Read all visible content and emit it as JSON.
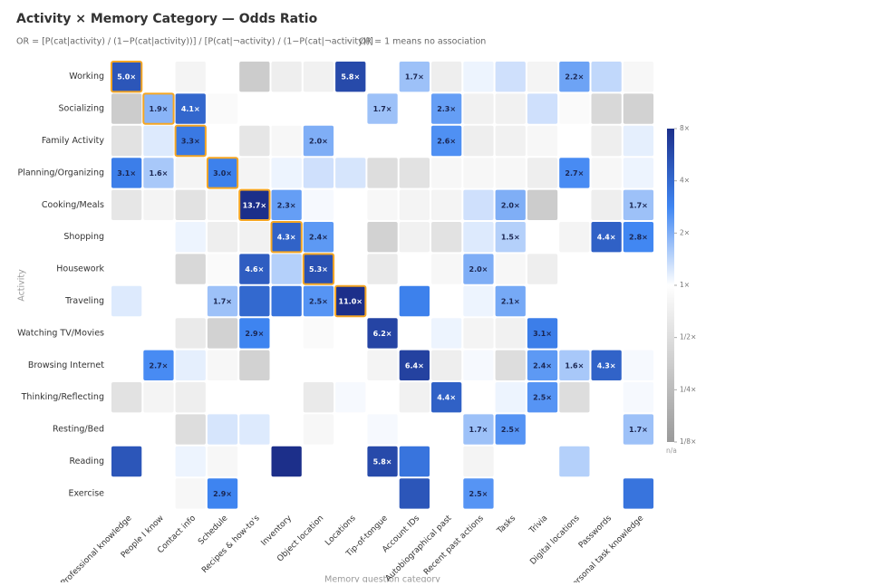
{
  "chart_data": {
    "type": "heatmap",
    "title": "Activity × Memory Category — Odds Ratio",
    "subtitle": "OR = [P(cat|activity) / (1−P(cat|activity))] / [P(cat|¬activity) / (1−P(cat|¬activity))]",
    "note": "OR = 1 means no association",
    "x_label": "Memory question category",
    "y_label": "Activity",
    "rows": [
      "Working",
      "Socializing",
      "Family Activity",
      "Planning/Organizing",
      "Cooking/Meals",
      "Shopping",
      "Housework",
      "Traveling",
      "Watching TV/Movies",
      "Browsing Internet",
      "Thinking/Reflecting",
      "Resting/Bed",
      "Reading",
      "Exercise"
    ],
    "columns": [
      "Professional knowledge",
      "People I know",
      "Contact info",
      "Schedule",
      "Recipes & how-to's",
      "Inventory",
      "Object location",
      "Locations",
      "Tip-of-tongue",
      "Account IDs",
      "Autobiographical past",
      "Recent past actions",
      "Tasks",
      "Trivia",
      "Digital locations",
      "Passwords",
      "Personal task knowledge"
    ],
    "values": [
      [
        5.0,
        1,
        0.8,
        1,
        0.35,
        0.7,
        0.75,
        5.8,
        1,
        1.7,
        0.7,
        1.1,
        1.3,
        0.8,
        2.2,
        1.4,
        0.85
      ],
      [
        0.35,
        1.9,
        4.1,
        0.9,
        1,
        1,
        1,
        1,
        1.7,
        1,
        2.3,
        0.75,
        0.75,
        1.3,
        0.9,
        0.45,
        0.4
      ],
      [
        0.55,
        1.2,
        3.3,
        1,
        0.6,
        0.85,
        2.0,
        1,
        1,
        1,
        2.6,
        0.7,
        0.75,
        0.85,
        1,
        0.7,
        1.15
      ],
      [
        3.1,
        1.6,
        0.8,
        3.0,
        0.8,
        1.1,
        1.3,
        1.25,
        0.5,
        0.55,
        0.85,
        0.85,
        0.85,
        0.7,
        2.7,
        0.85,
        1.1
      ],
      [
        0.6,
        0.8,
        0.55,
        0.8,
        13.7,
        2.3,
        1.05,
        1,
        0.85,
        0.8,
        0.8,
        1.3,
        2.0,
        0.35,
        1,
        0.7,
        1.7
      ],
      [
        1,
        1,
        1.1,
        0.7,
        0.75,
        4.3,
        2.4,
        1,
        0.4,
        0.75,
        0.55,
        1.2,
        1.5,
        1,
        0.8,
        4.4,
        2.8
      ],
      [
        1,
        1,
        0.45,
        0.9,
        4.6,
        1.5,
        5.3,
        1,
        0.65,
        1,
        0.85,
        2.0,
        0.85,
        0.7,
        1,
        1,
        1
      ],
      [
        1.2,
        1,
        1,
        1.7,
        4.0,
        3.5,
        2.5,
        11.0,
        1,
        3.0,
        1,
        1.1,
        2.1,
        1,
        1,
        1,
        1
      ],
      [
        1,
        1,
        0.65,
        0.4,
        2.9,
        1,
        0.9,
        1,
        6.2,
        1,
        1.1,
        0.8,
        0.75,
        3.1,
        1,
        1,
        1
      ],
      [
        1,
        2.7,
        1.15,
        0.85,
        0.4,
        1,
        1,
        1,
        0.8,
        6.4,
        0.7,
        1.05,
        0.5,
        2.4,
        1.6,
        4.3,
        1.05
      ],
      [
        0.55,
        0.8,
        0.7,
        1,
        1,
        1,
        0.65,
        1.05,
        1,
        0.75,
        4.4,
        1,
        1.1,
        2.5,
        0.5,
        1,
        1.05
      ],
      [
        1,
        1,
        0.5,
        1.25,
        1.2,
        1,
        0.85,
        1,
        1.05,
        1,
        1,
        1.7,
        2.5,
        1,
        1,
        1,
        1.7
      ],
      [
        5.0,
        1,
        1.1,
        0.85,
        1,
        8.0,
        1,
        1,
        5.8,
        3.5,
        1,
        0.8,
        1,
        1,
        1.5,
        1,
        1
      ],
      [
        1,
        1,
        0.85,
        2.9,
        1,
        1,
        1,
        1,
        1,
        5.0,
        1,
        2.5,
        1,
        1,
        1,
        1,
        3.5
      ]
    ],
    "value_labels": [
      [
        "5.0×",
        null,
        null,
        null,
        null,
        null,
        null,
        "5.8×",
        null,
        "1.7×",
        null,
        null,
        null,
        null,
        "2.2×",
        null,
        null
      ],
      [
        null,
        "1.9×",
        "4.1×",
        null,
        null,
        null,
        null,
        null,
        "1.7×",
        null,
        "2.3×",
        null,
        null,
        null,
        null,
        null,
        null
      ],
      [
        null,
        null,
        "3.3×",
        null,
        null,
        null,
        "2.0×",
        null,
        null,
        null,
        "2.6×",
        null,
        null,
        null,
        null,
        null,
        null
      ],
      [
        "3.1×",
        "1.6×",
        null,
        "3.0×",
        null,
        null,
        null,
        null,
        null,
        null,
        null,
        null,
        null,
        null,
        "2.7×",
        null,
        null
      ],
      [
        null,
        null,
        null,
        null,
        "13.7×",
        "2.3×",
        null,
        null,
        null,
        null,
        null,
        null,
        "2.0×",
        null,
        null,
        null,
        "1.7×"
      ],
      [
        null,
        null,
        null,
        null,
        null,
        "4.3×",
        "2.4×",
        null,
        null,
        null,
        null,
        null,
        "1.5×",
        null,
        null,
        "4.4×",
        "2.8×"
      ],
      [
        null,
        null,
        null,
        null,
        "4.6×",
        null,
        "5.3×",
        null,
        null,
        null,
        null,
        "2.0×",
        null,
        null,
        null,
        null,
        null
      ],
      [
        null,
        null,
        null,
        "1.7×",
        null,
        null,
        "2.5×",
        "11.0×",
        null,
        null,
        null,
        null,
        "2.1×",
        null,
        null,
        null,
        null
      ],
      [
        null,
        null,
        null,
        null,
        "2.9×",
        null,
        null,
        null,
        "6.2×",
        null,
        null,
        null,
        null,
        "3.1×",
        null,
        null,
        null
      ],
      [
        null,
        "2.7×",
        null,
        null,
        null,
        null,
        null,
        null,
        null,
        "6.4×",
        null,
        null,
        null,
        "2.4×",
        "1.6×",
        "4.3×",
        null
      ],
      [
        null,
        null,
        null,
        null,
        null,
        null,
        null,
        null,
        null,
        null,
        "4.4×",
        null,
        null,
        "2.5×",
        null,
        null,
        null
      ],
      [
        null,
        null,
        null,
        null,
        null,
        null,
        null,
        null,
        null,
        null,
        null,
        "1.7×",
        "2.5×",
        null,
        null,
        null,
        "1.7×"
      ],
      [
        null,
        null,
        null,
        null,
        null,
        null,
        null,
        null,
        "5.8×",
        null,
        null,
        null,
        null,
        null,
        null,
        null,
        null
      ],
      [
        null,
        null,
        null,
        "2.9×",
        null,
        null,
        null,
        null,
        null,
        null,
        null,
        "2.5×",
        null,
        null,
        null,
        null,
        null
      ]
    ],
    "highlighted": [
      [
        0,
        0
      ],
      [
        1,
        1
      ],
      [
        2,
        2
      ],
      [
        3,
        3
      ],
      [
        4,
        4
      ],
      [
        5,
        5
      ],
      [
        6,
        6
      ],
      [
        7,
        7
      ]
    ],
    "highlight_color": "#f5a623",
    "log_scale": true,
    "colorscale": [
      {
        "value": 0.125,
        "color": "#9a9a9a"
      },
      {
        "value": 1,
        "color": "#ffffff"
      },
      {
        "value": 2.83,
        "color": "#3f86f2"
      },
      {
        "value": 8,
        "color": "#1c2f8a"
      }
    ],
    "colorbar_lim": [
      0.125,
      8
    ],
    "colorbar_ticks": [
      {
        "value": 8,
        "label": "8×"
      },
      {
        "value": 4,
        "label": "4×"
      },
      {
        "value": 2,
        "label": "2×"
      },
      {
        "value": 1,
        "label": "1×"
      },
      {
        "value": 0.5,
        "label": "1/2×"
      },
      {
        "value": 0.25,
        "label": "1/4×"
      },
      {
        "value": 0.125,
        "label": "1/8×"
      }
    ],
    "na_label": "n/a"
  }
}
